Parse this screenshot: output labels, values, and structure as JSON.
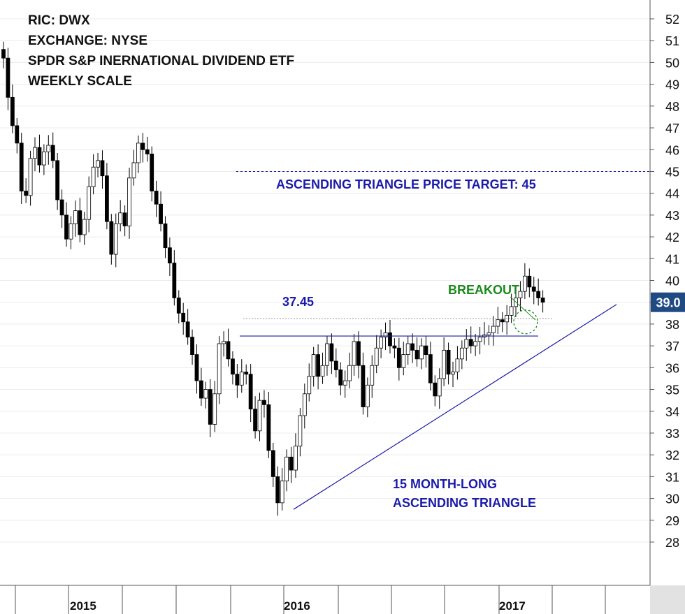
{
  "header": {
    "ric": "RIC: DWX",
    "exchange": "EXCHANGE: NYSE",
    "name": "SPDR S&P INERNATIONAL DIVIDEND ETF",
    "scale": "WEEKLY SCALE"
  },
  "chart_data": {
    "type": "candlestick",
    "ylim": [
      27,
      53
    ],
    "ticks": [
      28,
      29,
      30,
      31,
      32,
      33,
      34,
      35,
      36,
      37,
      38,
      39,
      40,
      41,
      42,
      43,
      44,
      45,
      46,
      47,
      48,
      49,
      50,
      51,
      52
    ],
    "x_labels": [
      "2015",
      "2016",
      "2017"
    ],
    "last_price": {
      "label": "39.0",
      "value": 39.0
    },
    "colors": {
      "up": "#ffffff",
      "down": "#000000",
      "annotation_blue": "#1a1aaa",
      "annotation_green": "#1a8a1a",
      "last_price_bg": "#1f4a82"
    },
    "annotations": {
      "target_label": "ASCENDING TRIANGLE PRICE TARGET: 45",
      "target_value": 45,
      "resistance_label": "37.45",
      "resistance_value": 37.45,
      "breakout_label": "BREAKOUT",
      "breakout_level": 38.25,
      "pattern_label_1": "15 MONTH-LONG",
      "pattern_label_2": "ASCENDING TRIANGLE",
      "support_line": {
        "start": [
          "2016-01",
          29.5
        ],
        "end": [
          "2017-06",
          38.9
        ]
      }
    },
    "closes": [
      50.2,
      48.4,
      47.1,
      46.3,
      44.1,
      43.9,
      45.6,
      46.1,
      45.3,
      45.9,
      46.2,
      45.5,
      43.7,
      43.0,
      41.9,
      42.6,
      43.2,
      42.1,
      42.8,
      44.3,
      45.2,
      45.5,
      44.8,
      42.7,
      41.2,
      42.6,
      43.1,
      42.5,
      44.7,
      45.4,
      46.3,
      46.0,
      45.8,
      44.1,
      43.5,
      42.6,
      41.5,
      40.8,
      39.2,
      38.5,
      38.1,
      37.4,
      36.6,
      35.4,
      34.6,
      35.0,
      33.4,
      34.8,
      37.1,
      37.2,
      36.4,
      35.7,
      35.2,
      35.8,
      35.7,
      34.1,
      33.1,
      34.5,
      34.3,
      32.2,
      31.0,
      29.8,
      30.8,
      31.9,
      31.3,
      32.4,
      33.8,
      34.8,
      35.6,
      36.6,
      35.6,
      36.1,
      37.1,
      36.3,
      35.9,
      35.2,
      35.4,
      36.1,
      37.2,
      36.1,
      34.2,
      35.2,
      36.1,
      36.9,
      37.4,
      37.6,
      37.0,
      36.9,
      36.0,
      36.6,
      37.1,
      36.8,
      36.4,
      37.0,
      36.6,
      35.3,
      34.7,
      35.5,
      36.8,
      35.7,
      35.8,
      36.4,
      36.9,
      37.3,
      37.0,
      37.2,
      37.4,
      37.5,
      37.6,
      37.9,
      38.2,
      38.1,
      38.4,
      38.8,
      39.2,
      39.5,
      40.2,
      39.7,
      39.5,
      39.2,
      39.0
    ],
    "weeks_start": "2014-10"
  }
}
